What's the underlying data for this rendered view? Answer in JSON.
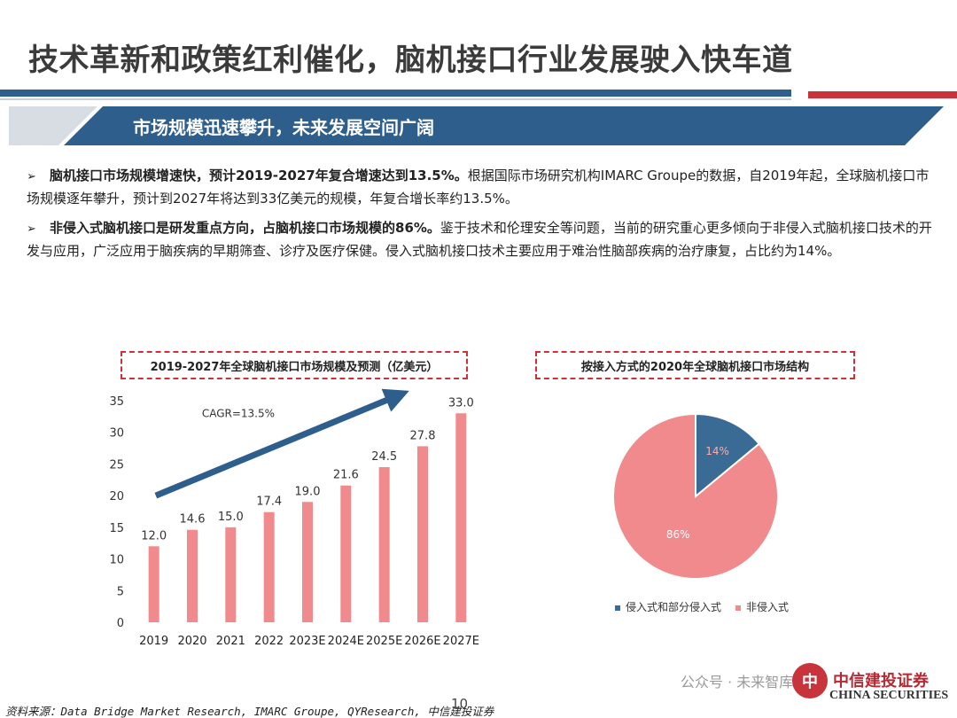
{
  "title": "技术革新和政策红利催化，脑机接口行业发展驶入快车道",
  "section_header": "市场规模迅速攀升，未来发展空间广阔",
  "bullets": [
    {
      "marker": "➢",
      "bold": "脑机接口市场规模增速快，预计2019-2027年复合增速达到13.5%。",
      "text": "根据国际市场研究机构IMARC Groupe的数据，自2019年起，全球脑机接口市场规模逐年攀升，预计到2027年将达到33亿美元的规模，年复合增长率约13.5%。"
    },
    {
      "marker": "➢",
      "bold": "非侵入式脑机接口是研发重点方向，占脑机接口市场规模的86%。",
      "text": "鉴于技术和伦理安全等问题，当前的研究重心更多倾向于非侵入式脑机接口技术的开发与应用，广泛应用于脑疾病的早期筛查、诊疗及医疗保健。侵入式脑机接口技术主要应用于难治性脑部疾病的治疗康复，占比约为14%。"
    }
  ],
  "chart_data": [
    {
      "type": "bar",
      "title": "2019-2027年全球脑机接口市场规模及预测（亿美元）",
      "categories": [
        "2019",
        "2020",
        "2021",
        "2022",
        "2023E",
        "2024E",
        "2025E",
        "2026E",
        "2027E"
      ],
      "values": [
        12.0,
        14.6,
        15.0,
        17.4,
        19.0,
        21.6,
        24.5,
        27.8,
        33.0
      ],
      "data_labels": [
        "12.0",
        "14.6",
        "15.0",
        "17.4",
        "19.0",
        "21.6",
        "24.5",
        "27.8",
        "33.0"
      ],
      "ylim": [
        0,
        35
      ],
      "yticks": [
        "0",
        "5",
        "10",
        "15",
        "20",
        "25",
        "30",
        "35"
      ],
      "annotation": "CAGR=13.5%",
      "bar_color": "#f08a8c",
      "arrow_color": "#2e5e8c",
      "grid": false
    },
    {
      "type": "pie",
      "title": "按接入方式的2020年全球脑机接口市场结构",
      "labels": [
        "侵入式和部分侵入式",
        "非侵入式"
      ],
      "values": [
        14,
        86
      ],
      "data_labels": [
        "14%",
        "86%"
      ],
      "colors": [
        "#3a6b94",
        "#f08a8c"
      ],
      "legend_position": "bottom"
    }
  ],
  "source": "资料来源：Data Bridge Market Research, IMARC Groupe, QYResearch, 中信建投证券",
  "page_number": "10",
  "watermark": "公众号 · 未来智库",
  "logo": {
    "glyph": "中",
    "cn": "中信建投证券",
    "en": "CHINA SECURITIES"
  },
  "colors": {
    "primary_blue": "#2e5e8c",
    "accent_red": "#c9333c"
  }
}
